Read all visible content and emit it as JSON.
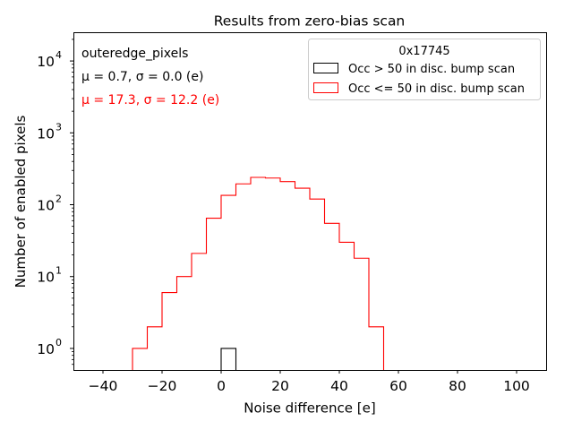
{
  "chart_data": {
    "type": "histogram",
    "title": "Results from zero-bias scan",
    "xlabel": "Noise difference [e]",
    "ylabel": "Number of enabled pixels",
    "xlim": [
      -50,
      110
    ],
    "ylim_log10": [
      -0.3,
      4.4
    ],
    "y_scale": "log",
    "x_ticks": [
      -40,
      -20,
      0,
      20,
      40,
      60,
      80,
      100
    ],
    "x_tick_labels": [
      "−40",
      "−20",
      "0",
      "20",
      "40",
      "60",
      "80",
      "100"
    ],
    "y_ticks": [
      1,
      10,
      100,
      1000,
      10000
    ],
    "y_tick_bases": [
      "10",
      "10",
      "10",
      "10",
      "10"
    ],
    "y_tick_exps": [
      "0",
      "1",
      "2",
      "3",
      "4"
    ],
    "bin_edges": [
      -30,
      -25,
      -20,
      -15,
      -10,
      -5,
      0,
      5,
      10,
      15,
      20,
      25,
      30,
      35,
      40,
      45,
      50,
      55,
      60
    ],
    "series": [
      {
        "name": "Occ > 50 in disc. bump scan",
        "color": "#000000",
        "bin_edges": [
          0,
          5
        ],
        "counts": [
          1
        ]
      },
      {
        "name": "Occ <= 50 in disc. bump scan",
        "color": "#ff0000",
        "bin_edges": [
          -30,
          -25,
          -20,
          -15,
          -10,
          -5,
          0,
          5,
          10,
          15,
          20,
          25,
          30,
          35,
          40,
          45,
          50,
          55,
          60
        ],
        "counts": [
          1,
          2,
          6,
          10,
          21,
          65,
          135,
          195,
          240,
          235,
          210,
          170,
          120,
          55,
          30,
          18,
          2,
          0
        ]
      }
    ],
    "legend": {
      "title": "0x17745",
      "position": "top-right"
    },
    "annotations": {
      "label": "outeredge_pixels",
      "black_stats": "μ = 0.7, σ = 0.0 (e)",
      "red_stats": "μ = 17.3, σ = 12.2 (e)",
      "red_color": "#ff0000"
    }
  }
}
